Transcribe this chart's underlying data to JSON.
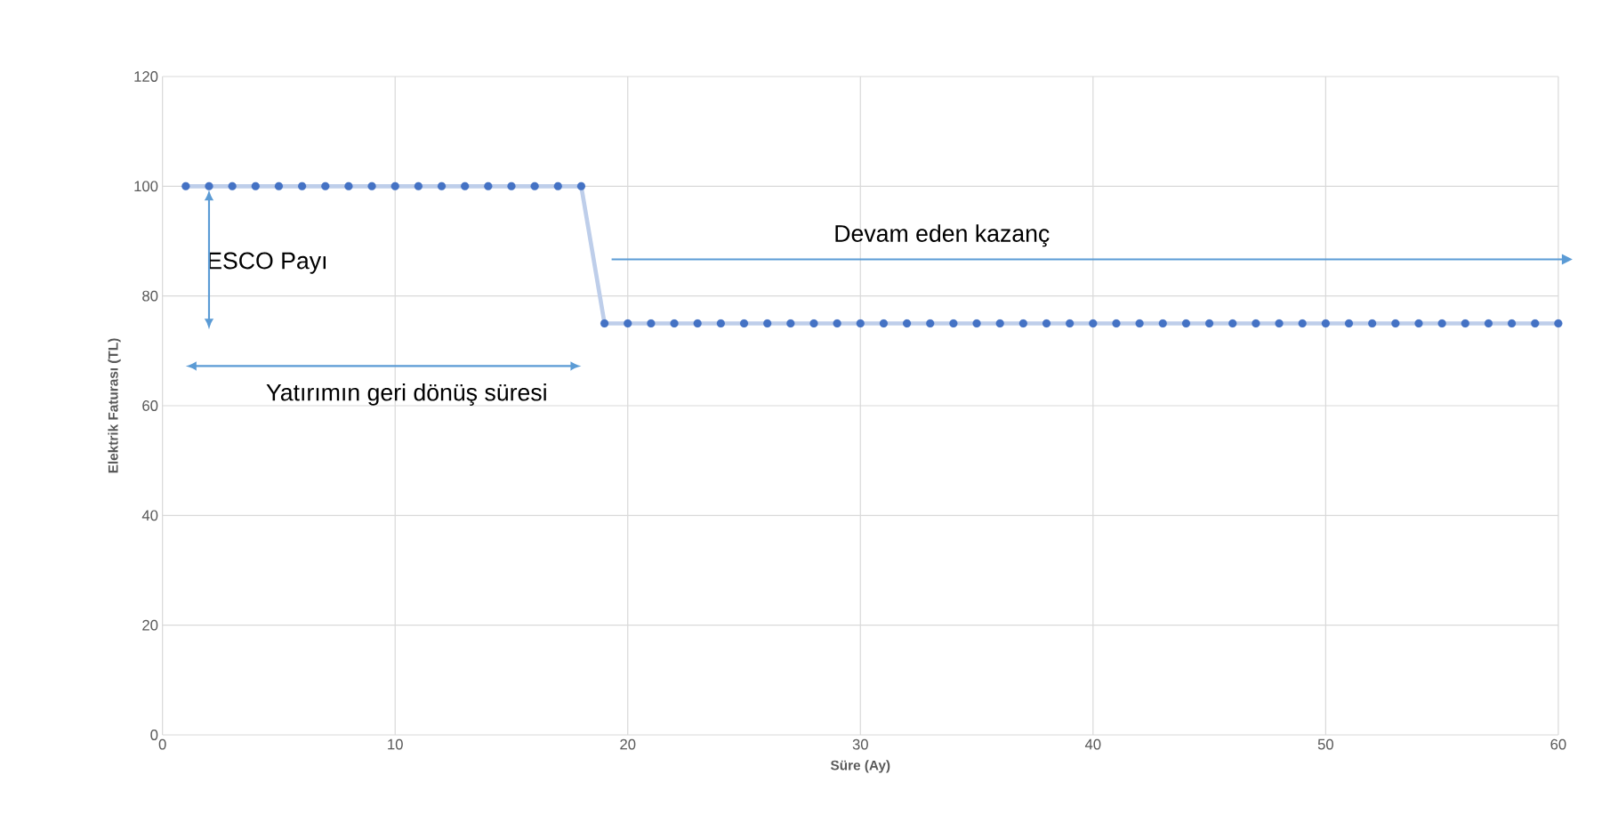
{
  "chart_data": {
    "type": "line",
    "xlabel": "Süre (Ay)",
    "ylabel": "Elektrik Faturası (TL)",
    "x": [
      1,
      2,
      3,
      4,
      5,
      6,
      7,
      8,
      9,
      10,
      11,
      12,
      13,
      14,
      15,
      16,
      17,
      18,
      19,
      20,
      21,
      22,
      23,
      24,
      25,
      26,
      27,
      28,
      29,
      30,
      31,
      32,
      33,
      34,
      35,
      36,
      37,
      38,
      39,
      40,
      41,
      42,
      43,
      44,
      45,
      46,
      47,
      48,
      49,
      50,
      51,
      52,
      53,
      54,
      55,
      56,
      57,
      58,
      59,
      60
    ],
    "series": [
      {
        "color": "#4472c4",
        "values": [
          100,
          100,
          100,
          100,
          100,
          100,
          100,
          100,
          100,
          100,
          100,
          100,
          100,
          100,
          100,
          100,
          100,
          100,
          75,
          75,
          75,
          75,
          75,
          75,
          75,
          75,
          75,
          75,
          75,
          75,
          75,
          75,
          75,
          75,
          75,
          75,
          75,
          75,
          75,
          75,
          75,
          75,
          75,
          75,
          75,
          75,
          75,
          75,
          75,
          75,
          75,
          75,
          75,
          75,
          75,
          75,
          75,
          75,
          75,
          75
        ]
      }
    ],
    "xlim": [
      0,
      60
    ],
    "ylim": [
      0,
      120
    ],
    "xticks": [
      0,
      10,
      20,
      30,
      40,
      50,
      60
    ],
    "yticks": [
      0,
      20,
      40,
      60,
      80,
      100,
      120
    ],
    "grid": true,
    "marker": "circle",
    "line_style": "solid",
    "annotations": [
      "ESCO Payı",
      "Yatırımın geri dönüş süresi",
      "Devam eden kazanç"
    ]
  }
}
